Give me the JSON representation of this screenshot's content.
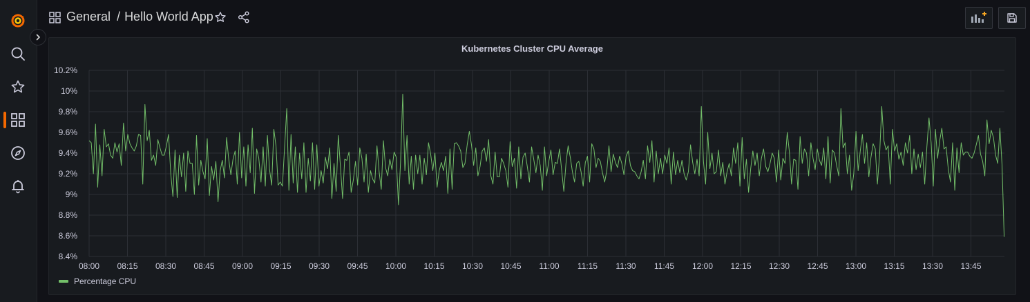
{
  "nav": {
    "items": [
      {
        "name": "grafana-logo-icon"
      },
      {
        "name": "search-icon"
      },
      {
        "name": "starred-icon"
      },
      {
        "name": "dashboards-icon"
      },
      {
        "name": "explore-icon"
      },
      {
        "name": "alerting-icon"
      }
    ]
  },
  "breadcrumb": {
    "folder": "General",
    "separator": "/",
    "dashboard": "Hello World App"
  },
  "toolbar": {
    "add_panel_icon": "add-panel-icon",
    "save_icon": "save-icon"
  },
  "panel": {
    "title": "Kubernetes Cluster CPU Average",
    "legend": "Percentage CPU"
  },
  "colors": {
    "series": "#73bf69",
    "accent": "#f46800",
    "background": "#111217",
    "panel": "#181b1f"
  },
  "chart_data": {
    "type": "line",
    "title": "Kubernetes Cluster CPU Average",
    "xlabel": "",
    "ylabel": "",
    "x_ticks": [
      "08:00",
      "08:15",
      "08:30",
      "08:45",
      "09:00",
      "09:15",
      "09:30",
      "09:45",
      "10:00",
      "10:15",
      "10:30",
      "10:45",
      "11:00",
      "11:15",
      "11:30",
      "11:45",
      "12:00",
      "12:15",
      "12:30",
      "12:45",
      "13:00",
      "13:15",
      "13:30",
      "13:45"
    ],
    "y_ticks": [
      "8.4%",
      "8.6%",
      "8.8%",
      "9%",
      "9.2%",
      "9.4%",
      "9.6%",
      "9.8%",
      "10%",
      "10.2%"
    ],
    "ylim": [
      8.4,
      10.2
    ],
    "x_range_minutes": [
      0,
      358
    ],
    "legend_position": "bottom-left",
    "grid": true,
    "series": [
      {
        "name": "Percentage CPU",
        "color": "#73bf69",
        "values": [
          9.52,
          9.5,
          9.2,
          9.68,
          9.07,
          9.48,
          9.18,
          9.63,
          9.46,
          9.49,
          9.38,
          9.35,
          9.5,
          9.41,
          9.49,
          9.28,
          9.69,
          9.42,
          9.58,
          9.49,
          9.45,
          9.42,
          9.47,
          9.58,
          9.57,
          9.1,
          9.87,
          9.52,
          9.62,
          9.33,
          9.38,
          9.28,
          9.53,
          9.45,
          9.38,
          9.38,
          9.47,
          9.58,
          9.2,
          8.98,
          9.43,
          8.97,
          9.38,
          9.17,
          9.4,
          9.03,
          9.42,
          9.3,
          9.3,
          9.0,
          9.57,
          9.09,
          9.33,
          9.22,
          9.15,
          9.54,
          8.99,
          9.27,
          9.14,
          9.32,
          8.93,
          9.23,
          9.33,
          9.16,
          9.55,
          9.34,
          9.19,
          9.34,
          9.42,
          9.1,
          9.6,
          9.16,
          9.46,
          9.08,
          9.48,
          9.21,
          9.64,
          9.01,
          9.44,
          9.35,
          9.12,
          9.46,
          9.08,
          9.57,
          9.24,
          9.09,
          9.63,
          9.47,
          9.09,
          9.12,
          9.08,
          9.46,
          9.83,
          9.04,
          9.58,
          9.11,
          9.46,
          9.02,
          9.4,
          9.15,
          9.5,
          9.02,
          9.35,
          9.13,
          9.5,
          9.05,
          9.48,
          9.08,
          9.23,
          9.11,
          9.36,
          9.25,
          9.45,
          8.96,
          9.3,
          9.03,
          9.57,
          9.27,
          8.96,
          9.34,
          9.33,
          9.41,
          9.02,
          9.14,
          9.32,
          9.09,
          9.45,
          9.35,
          9.12,
          9.39,
          9.02,
          9.23,
          9.15,
          9.11,
          9.47,
          9.22,
          9.05,
          9.52,
          9.26,
          9.18,
          9.34,
          9.24,
          9.41,
          9.36,
          8.9,
          9.32,
          9.97,
          9.23,
          9.57,
          9.1,
          9.37,
          9.05,
          9.38,
          9.2,
          9.38,
          9.1,
          9.35,
          9.19,
          9.5,
          9.39,
          9.23,
          9.4,
          9.07,
          9.23,
          9.31,
          9.23,
          9.37,
          9.01,
          9.44,
          9.05,
          9.49,
          9.5,
          9.47,
          9.42,
          9.26,
          9.3,
          9.48,
          9.61,
          9.48,
          9.28,
          9.45,
          9.18,
          9.27,
          9.42,
          9.45,
          9.32,
          9.53,
          9.18,
          9.1,
          9.41,
          9.17,
          9.17,
          9.35,
          9.3,
          9.23,
          9.07,
          9.51,
          9.27,
          9.35,
          9.06,
          9.46,
          9.15,
          9.36,
          9.4,
          9.27,
          9.12,
          9.46,
          9.34,
          9.21,
          9.38,
          9.28,
          9.04,
          9.46,
          9.18,
          9.32,
          9.43,
          9.19,
          9.31,
          9.3,
          9.44,
          9.23,
          9.03,
          9.3,
          9.47,
          9.36,
          9.22,
          9.12,
          9.3,
          9.32,
          9.22,
          9.08,
          9.31,
          9.37,
          9.12,
          9.49,
          9.44,
          9.26,
          9.35,
          9.32,
          9.21,
          9.12,
          9.23,
          9.47,
          9.22,
          9.39,
          9.31,
          9.26,
          9.37,
          9.3,
          9.19,
          9.37,
          9.42,
          9.28,
          9.23,
          9.22,
          9.18,
          9.15,
          9.22,
          9.33,
          9.15,
          9.47,
          9.31,
          9.52,
          9.12,
          9.42,
          9.2,
          9.35,
          9.2,
          9.38,
          9.3,
          9.45,
          9.1,
          9.41,
          9.19,
          9.33,
          9.21,
          9.33,
          9.2,
          9.14,
          9.22,
          9.48,
          9.31,
          9.2,
          9.34,
          9.18,
          9.85,
          9.32,
          9.1,
          9.6,
          9.25,
          9.4,
          9.2,
          9.22,
          9.43,
          9.18,
          9.31,
          9.1,
          9.22,
          9.3,
          9.18,
          9.45,
          9.3,
          9.5,
          9.08,
          9.55,
          9.15,
          9.34,
          9.02,
          9.25,
          9.42,
          9.28,
          9.4,
          9.18,
          9.35,
          9.44,
          9.27,
          9.22,
          9.3,
          9.4,
          9.35,
          9.12,
          9.43,
          9.14,
          9.35,
          9.3,
          9.6,
          9.41,
          9.1,
          9.34,
          9.33,
          9.05,
          9.56,
          9.3,
          9.44,
          9.4,
          9.18,
          9.5,
          9.35,
          9.24,
          9.44,
          9.33,
          9.28,
          9.45,
          9.15,
          9.56,
          9.11,
          9.43,
          9.4,
          9.28,
          9.18,
          9.83,
          9.45,
          9.5,
          9.2,
          9.38,
          9.04,
          9.2,
          9.61,
          9.23,
          9.42,
          9.58,
          9.3,
          9.5,
          9.17,
          9.36,
          9.49,
          9.44,
          9.1,
          9.38,
          9.85,
          9.52,
          9.43,
          9.47,
          9.1,
          9.63,
          9.42,
          9.49,
          9.34,
          9.41,
          9.28,
          9.5,
          9.4,
          9.57,
          9.2,
          9.44,
          9.24,
          9.39,
          9.26,
          9.41,
          9.1,
          9.46,
          9.74,
          9.5,
          9.08,
          9.63,
          9.35,
          9.52,
          9.64,
          9.44,
          9.46,
          9.24,
          9.12,
          9.5,
          9.04,
          9.45,
          9.21,
          9.5,
          9.38,
          9.41,
          9.41,
          9.37,
          9.35,
          9.4,
          9.48,
          9.57,
          9.39,
          9.32,
          9.18,
          9.72,
          9.49,
          9.62,
          9.55,
          9.38,
          9.3,
          9.64,
          9.29,
          8.59
        ]
      }
    ]
  }
}
